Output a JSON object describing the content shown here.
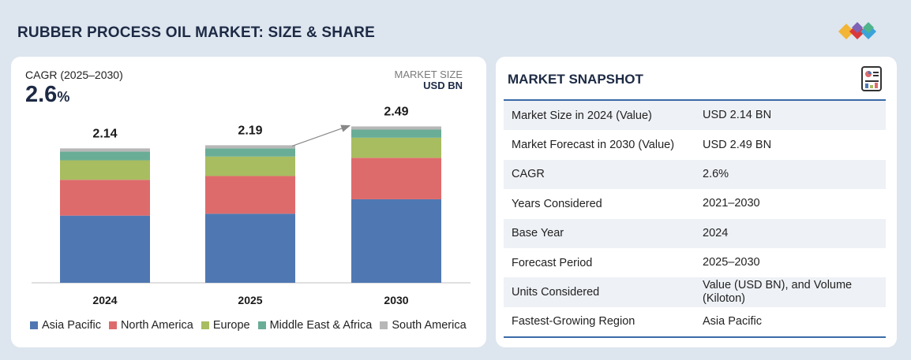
{
  "page": {
    "title": "RUBBER PROCESS OIL MARKET: SIZE & SHARE"
  },
  "cagr": {
    "label": "CAGR (2025–2030)",
    "value": "2.6",
    "unit": "%"
  },
  "market_size": {
    "label": "MARKET SIZE",
    "unit": "USD BN"
  },
  "chart_data": {
    "type": "bar",
    "stacked": true,
    "categories": [
      "2024",
      "2025",
      "2030"
    ],
    "totals": [
      2.14,
      2.19,
      2.49
    ],
    "total_labels": [
      "2.14",
      "2.19",
      "2.49"
    ],
    "ylim": [
      0,
      2.6
    ],
    "ylabel": "USD BN",
    "series": [
      {
        "name": "Asia Pacific",
        "color": "#4f78b2",
        "values": [
          1.07,
          1.1,
          1.33
        ]
      },
      {
        "name": "North America",
        "color": "#de6b6b",
        "values": [
          0.57,
          0.6,
          0.66
        ]
      },
      {
        "name": "Europe",
        "color": "#a8bd60",
        "values": [
          0.31,
          0.31,
          0.32
        ]
      },
      {
        "name": "Middle East & Africa",
        "color": "#6aad97",
        "values": [
          0.14,
          0.13,
          0.13
        ]
      },
      {
        "name": "South America",
        "color": "#b7b7b7",
        "values": [
          0.05,
          0.05,
          0.05
        ]
      }
    ],
    "annotations": [
      {
        "type": "arrow",
        "from_category": "2025",
        "to_category": "2030"
      }
    ],
    "legend_position": "bottom"
  },
  "snapshot": {
    "title": "MARKET SNAPSHOT",
    "rows": [
      {
        "key": "Market Size in 2024 (Value)",
        "value": "USD 2.14 BN"
      },
      {
        "key": "Market Forecast in 2030 (Value)",
        "value": "USD 2.49 BN"
      },
      {
        "key": "CAGR",
        "value": "2.6%"
      },
      {
        "key": "Years Considered",
        "value": "2021–2030"
      },
      {
        "key": "Base Year",
        "value": "2024"
      },
      {
        "key": "Forecast Period",
        "value": "2025–2030"
      },
      {
        "key": "Units Considered",
        "value": "Value (USD BN), and Volume (Kiloton)"
      },
      {
        "key": "Fastest-Growing Region",
        "value": "Asia Pacific"
      }
    ]
  },
  "colors": {
    "title": "#1d2a44",
    "accent_line": "#3a6aa8",
    "background": "#dde5ef"
  },
  "icons": {
    "logo": "brand-logo-icon",
    "snapshot": "document-report-icon"
  }
}
